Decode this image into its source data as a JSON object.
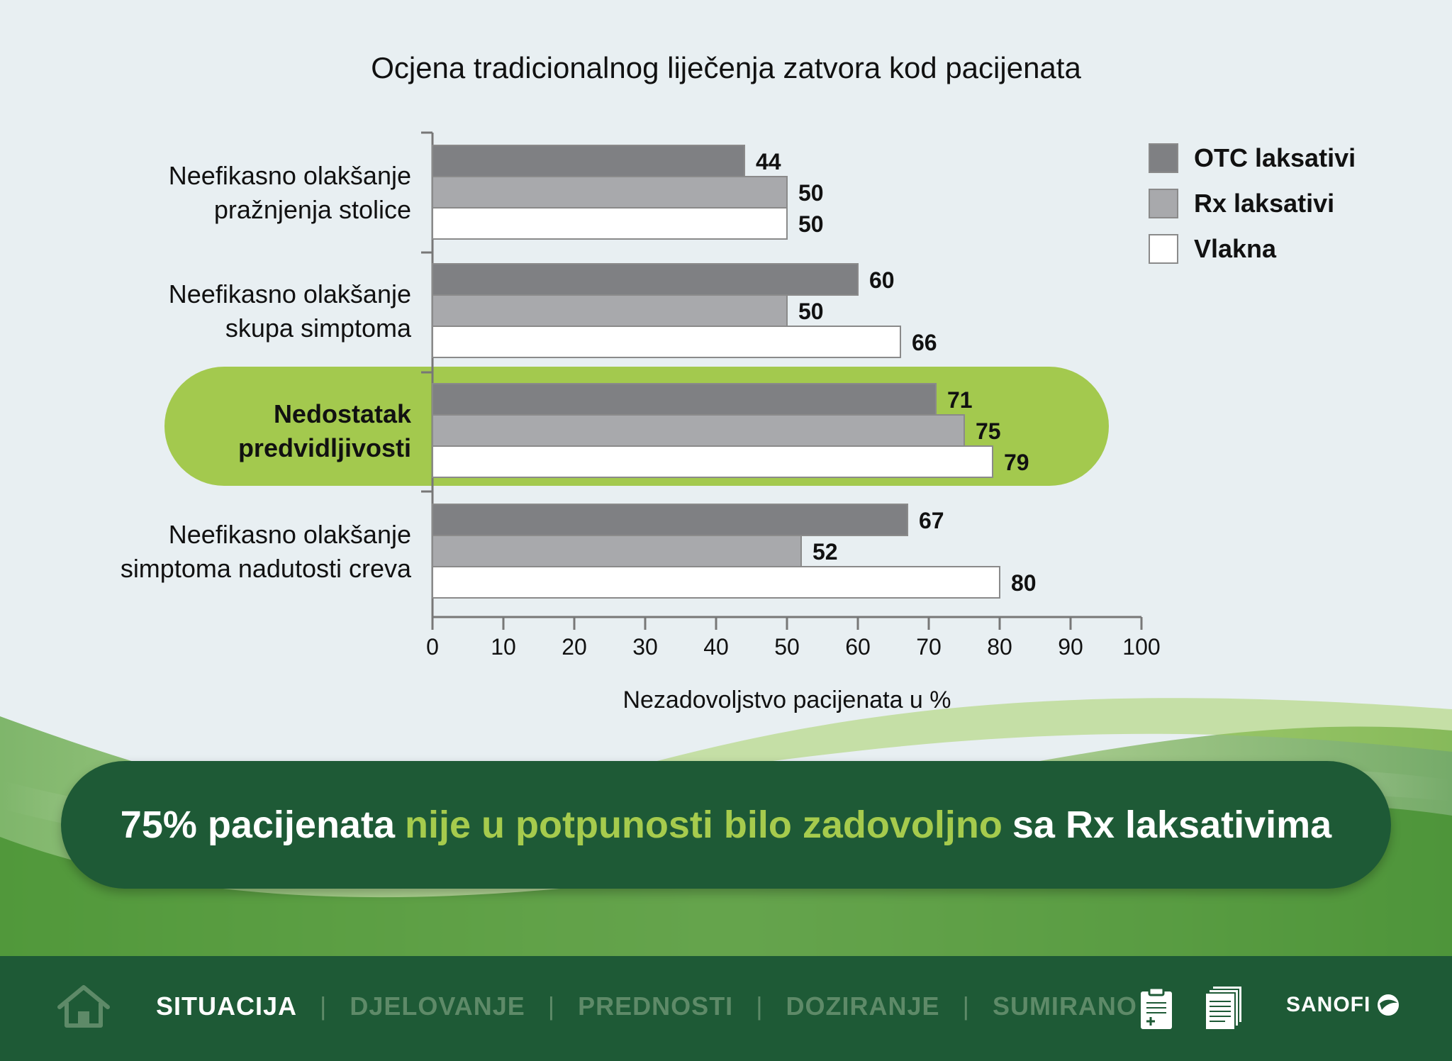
{
  "chart_data": {
    "type": "bar",
    "orientation": "horizontal",
    "title": "Ocjena tradicionalnog liječenja zatvora kod pacijenata",
    "xlabel": "Nezadovoljstvo pacijenata u %",
    "xlim": [
      0,
      100
    ],
    "xticks": [
      0,
      10,
      20,
      30,
      40,
      50,
      60,
      70,
      80,
      90,
      100
    ],
    "categories": [
      {
        "lines": [
          "Neefikasno olakšanje",
          "pražnjenja stolice"
        ],
        "highlighted": false
      },
      {
        "lines": [
          "Neefikasno olakšanje",
          "skupa simptoma"
        ],
        "highlighted": false
      },
      {
        "lines": [
          "Nedostatak",
          "predvidljivosti"
        ],
        "highlighted": true
      },
      {
        "lines": [
          "Neefikasno olakšanje",
          "simptoma nadutosti creva"
        ],
        "highlighted": false
      }
    ],
    "series": [
      {
        "name": "OTC laksativi",
        "color": "#7f8083",
        "values": [
          44,
          60,
          71,
          67
        ]
      },
      {
        "name": "Rx laksativi",
        "color": "#a8a9ac",
        "values": [
          50,
          50,
          75,
          52
        ]
      },
      {
        "name": "Vlakna",
        "color": "#ffffff",
        "values": [
          50,
          66,
          79,
          80
        ]
      }
    ],
    "legend_position": "top-right",
    "highlight_color": "#a3c94e"
  },
  "callout": {
    "prefix": "75% pacijenata",
    "highlight": "nije u potpunosti bilo zadovoljno",
    "suffix": "sa Rx laksativima"
  },
  "footer": {
    "nav": [
      {
        "label": "SITUACIJA",
        "active": true
      },
      {
        "label": "DJELOVANJE",
        "active": false
      },
      {
        "label": "PREDNOSTI",
        "active": false
      },
      {
        "label": "DOZIRANJE",
        "active": false
      },
      {
        "label": "SUMIRANO",
        "active": false
      }
    ],
    "separator": "|",
    "brand": "SANOFI",
    "icons": [
      "home-icon",
      "clipboard-icon",
      "documents-icon"
    ]
  }
}
